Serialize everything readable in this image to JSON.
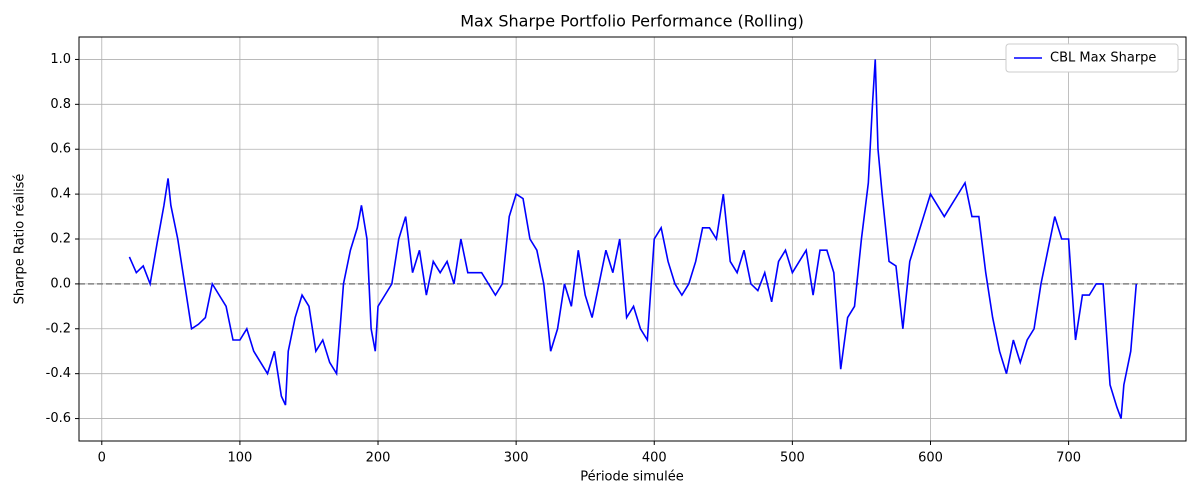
{
  "chart_data": {
    "type": "line",
    "title": "Max Sharpe Portfolio Performance (Rolling)",
    "xlabel": "Période simulée",
    "ylabel": "Sharpe Ratio réalisé",
    "x": [
      20,
      25,
      30,
      35,
      40,
      45,
      48,
      50,
      55,
      60,
      65,
      70,
      75,
      80,
      85,
      90,
      95,
      100,
      105,
      110,
      115,
      120,
      125,
      130,
      133,
      135,
      140,
      145,
      150,
      155,
      160,
      165,
      170,
      175,
      180,
      185,
      188,
      192,
      195,
      198,
      200,
      205,
      210,
      215,
      220,
      225,
      230,
      235,
      240,
      245,
      250,
      255,
      260,
      265,
      270,
      275,
      280,
      285,
      290,
      295,
      300,
      305,
      310,
      315,
      320,
      325,
      330,
      335,
      340,
      345,
      350,
      355,
      360,
      365,
      370,
      375,
      380,
      385,
      390,
      395,
      400,
      405,
      410,
      415,
      420,
      425,
      430,
      435,
      440,
      445,
      450,
      455,
      460,
      465,
      470,
      475,
      480,
      485,
      490,
      495,
      500,
      505,
      510,
      515,
      520,
      525,
      530,
      535,
      540,
      545,
      550,
      555,
      558,
      560,
      562,
      565,
      570,
      575,
      580,
      585,
      590,
      595,
      600,
      605,
      610,
      615,
      620,
      625,
      630,
      635,
      640,
      645,
      650,
      655,
      660,
      665,
      670,
      675,
      680,
      685,
      690,
      695,
      700,
      705,
      710,
      715,
      720,
      725,
      730,
      735,
      738,
      740,
      745,
      749
    ],
    "series": [
      {
        "name": "CBL Max Sharpe",
        "color": "#0000ff",
        "values": [
          0.12,
          0.05,
          0.08,
          0.0,
          0.18,
          0.35,
          0.47,
          0.35,
          0.2,
          0.0,
          -0.2,
          -0.18,
          -0.15,
          0.0,
          -0.05,
          -0.1,
          -0.25,
          -0.25,
          -0.2,
          -0.3,
          -0.35,
          -0.4,
          -0.3,
          -0.5,
          -0.54,
          -0.3,
          -0.15,
          -0.05,
          -0.1,
          -0.3,
          -0.25,
          -0.35,
          -0.4,
          0.0,
          0.15,
          0.25,
          0.35,
          0.2,
          -0.2,
          -0.3,
          -0.1,
          -0.05,
          0.0,
          0.2,
          0.3,
          0.05,
          0.15,
          -0.05,
          0.1,
          0.05,
          0.1,
          0.0,
          0.2,
          0.05,
          0.05,
          0.05,
          0.0,
          -0.05,
          0.0,
          0.3,
          0.4,
          0.38,
          0.2,
          0.15,
          0.0,
          -0.3,
          -0.2,
          0.0,
          -0.1,
          0.15,
          -0.05,
          -0.15,
          0.0,
          0.15,
          0.05,
          0.2,
          -0.15,
          -0.1,
          -0.2,
          -0.25,
          0.2,
          0.25,
          0.1,
          0.0,
          -0.05,
          0.0,
          0.1,
          0.25,
          0.25,
          0.2,
          0.4,
          0.1,
          0.05,
          0.15,
          0.0,
          -0.03,
          0.05,
          -0.08,
          0.1,
          0.15,
          0.05,
          0.1,
          0.15,
          -0.05,
          0.15,
          0.15,
          0.05,
          -0.38,
          -0.15,
          -0.1,
          0.2,
          0.45,
          0.8,
          1.0,
          0.6,
          0.4,
          0.1,
          0.08,
          -0.2,
          0.1,
          0.2,
          0.3,
          0.4,
          0.35,
          0.3,
          0.35,
          0.4,
          0.45,
          0.3,
          0.3,
          0.05,
          -0.15,
          -0.3,
          -0.4,
          -0.25,
          -0.35,
          -0.25,
          -0.2,
          0.0,
          0.15,
          0.3,
          0.2,
          0.2,
          -0.25,
          -0.05,
          -0.05,
          0.0,
          0.0,
          -0.45,
          -0.55,
          -0.6,
          -0.45,
          -0.3,
          0.0
        ]
      }
    ],
    "hline": 0,
    "xlim": [
      -16.5,
      785
    ],
    "ylim": [
      -0.7,
      1.1
    ],
    "xticks": [
      0,
      100,
      200,
      300,
      400,
      500,
      600,
      700
    ],
    "yticks": [
      -0.6,
      -0.4,
      -0.2,
      {
        "value": 0,
        "label": "0.0"
      },
      0.2,
      0.4,
      0.6,
      0.8,
      {
        "value": 1,
        "label": "1.0"
      }
    ],
    "grid": true,
    "legend": "upper right"
  }
}
